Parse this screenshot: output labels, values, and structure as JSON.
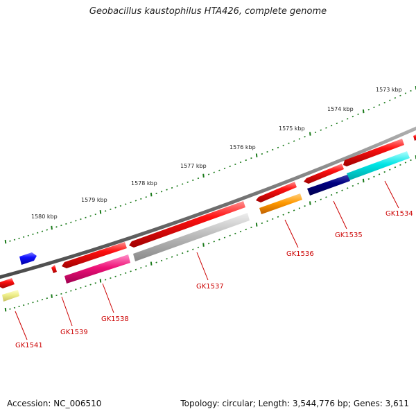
{
  "title": "Geobacillus kaustophilus HTA426, complete genome",
  "footer": {
    "accession": "Accession: NC_006510",
    "topology": "Topology: circular; Length: 3,544,776 bp; Genes: 3,611"
  },
  "kbp_labels": [
    "1573 kbp",
    "1574 kbp",
    "1575 kbp",
    "1576 kbp",
    "1577 kbp",
    "1578 kbp",
    "1579 kbp",
    "1580 kbp"
  ],
  "gene_labels": [
    "GK1534",
    "GK1535",
    "GK1536",
    "GK1537",
    "GK1538",
    "GK1539",
    "GK1541"
  ],
  "colors": {
    "backbone": "#7a7a7a",
    "tick_outer": "#1a7a1a",
    "tick_inner": "#1a7a1a",
    "gene_red": "#e80000",
    "label_red": "#cc0000",
    "blue": "#1010ff",
    "navy": "#000080",
    "cyan": "#00e5e5",
    "orange": "#ff9900",
    "magenta": "#ee1177",
    "grey": "#b8b8b8",
    "khaki": "#eeee88"
  }
}
